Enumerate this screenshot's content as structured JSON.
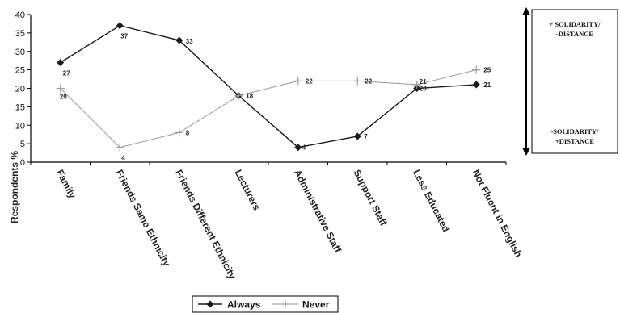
{
  "chart_data": {
    "type": "line",
    "ylabel": "Respondents %",
    "xlabel": "",
    "ylim": [
      0,
      40
    ],
    "yticks": [
      0,
      5,
      10,
      15,
      20,
      25,
      30,
      35,
      40
    ],
    "grid": false,
    "legend_position": "bottom",
    "categories": [
      "Family",
      "Friends Same Ethnicity",
      "Friends Different Ethnicity",
      "Lecturers",
      "Administrative Staff",
      "Support Staff",
      "Less Educated",
      "Not Fluent in English"
    ],
    "series": [
      {
        "name": "Always",
        "values": [
          27,
          37,
          33,
          18,
          4,
          7,
          20,
          21
        ],
        "color": "#1a1a1a",
        "marker": "diamond",
        "labels": [
          "27",
          "37",
          "33",
          "",
          "4",
          "7",
          "20",
          "21"
        ]
      },
      {
        "name": "Never",
        "values": [
          20,
          4,
          8,
          18,
          22,
          22,
          21,
          25
        ],
        "color": "#9a9a9a",
        "marker": "plus",
        "labels": [
          "20",
          "4",
          "8",
          "18",
          "22",
          "22",
          "21",
          "25"
        ]
      }
    ]
  },
  "scale_annotation": {
    "top": [
      "+ SOLIDARITY/",
      "-DISTANCE"
    ],
    "bottom": [
      "-SOLIDARITY/",
      "+DISTANCE"
    ]
  }
}
